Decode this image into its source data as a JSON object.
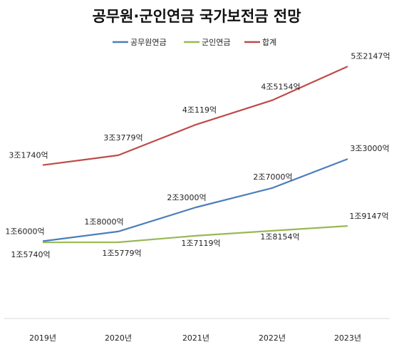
{
  "chart_data": {
    "type": "line",
    "title": "공무원·군인연금 국가보전금 전망",
    "categories": [
      "2019년",
      "2020년",
      "2021년",
      "2022년",
      "2023년"
    ],
    "ylim": [
      0,
      60000
    ],
    "grid": false,
    "legend_position": "top",
    "unit_note": "values in 억 (hundred million won)",
    "series": [
      {
        "name": "공무원연금",
        "color": "#4a7ebb",
        "values": [
          16000,
          18000,
          23000,
          27000,
          33000
        ],
        "labels": [
          "1조6000억",
          "1조8000억",
          "2조3000억",
          "2조7000억",
          "3조3000억"
        ]
      },
      {
        "name": "군인연금",
        "color": "#98b954",
        "values": [
          15740,
          15779,
          17119,
          18154,
          19147
        ],
        "labels": [
          "1조5740억",
          "1조5779억",
          "1조7119억",
          "1조8154억",
          "1조9147억"
        ]
      },
      {
        "name": "합계",
        "color": "#be4b48",
        "values": [
          31740,
          33779,
          40119,
          45154,
          52147
        ],
        "labels": [
          "3조1740억",
          "3조3779억",
          "4조119억",
          "4조5154억",
          "5조2147억"
        ]
      }
    ]
  }
}
